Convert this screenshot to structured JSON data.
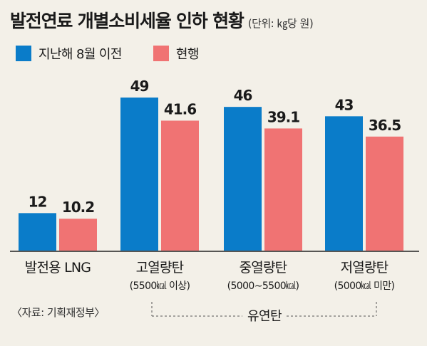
{
  "header": {
    "title": "발전연료 개별소비세율 인하 현황",
    "unit": "(단위: ㎏당 원)"
  },
  "legend": [
    {
      "label": "지난해 8월 이전",
      "color": "#0a7cc9"
    },
    {
      "label": "현행",
      "color": "#f07373"
    }
  ],
  "footer": {
    "source": "〈자료: 기획재정부〉",
    "group_label": "유연탄"
  },
  "chart_data": {
    "type": "bar",
    "title": "발전연료 개별소비세율 인하 현황",
    "unit": "(단위: ㎏당 원)",
    "categories": [
      {
        "label": "발전용 LNG",
        "sublabel": ""
      },
      {
        "label": "고열량탄",
        "sublabel": "(5500㎉ 이상)"
      },
      {
        "label": "중열량탄",
        "sublabel": "(5000∼5500㎉)"
      },
      {
        "label": "저열량탄",
        "sublabel": "(5000㎉ 미만)"
      }
    ],
    "series": [
      {
        "name": "지난해 8월 이전",
        "color": "#0a7cc9",
        "values": [
          12,
          49,
          46,
          43
        ],
        "labels": [
          "12",
          "49",
          "46",
          "43"
        ]
      },
      {
        "name": "현행",
        "color": "#f07373",
        "values": [
          10.2,
          41.6,
          39.1,
          36.5
        ],
        "labels": [
          "10.2",
          "41.6",
          "39.1",
          "36.5"
        ]
      }
    ],
    "ylim": [
      0,
      49
    ],
    "grid": false,
    "legend_position": "top-left"
  }
}
